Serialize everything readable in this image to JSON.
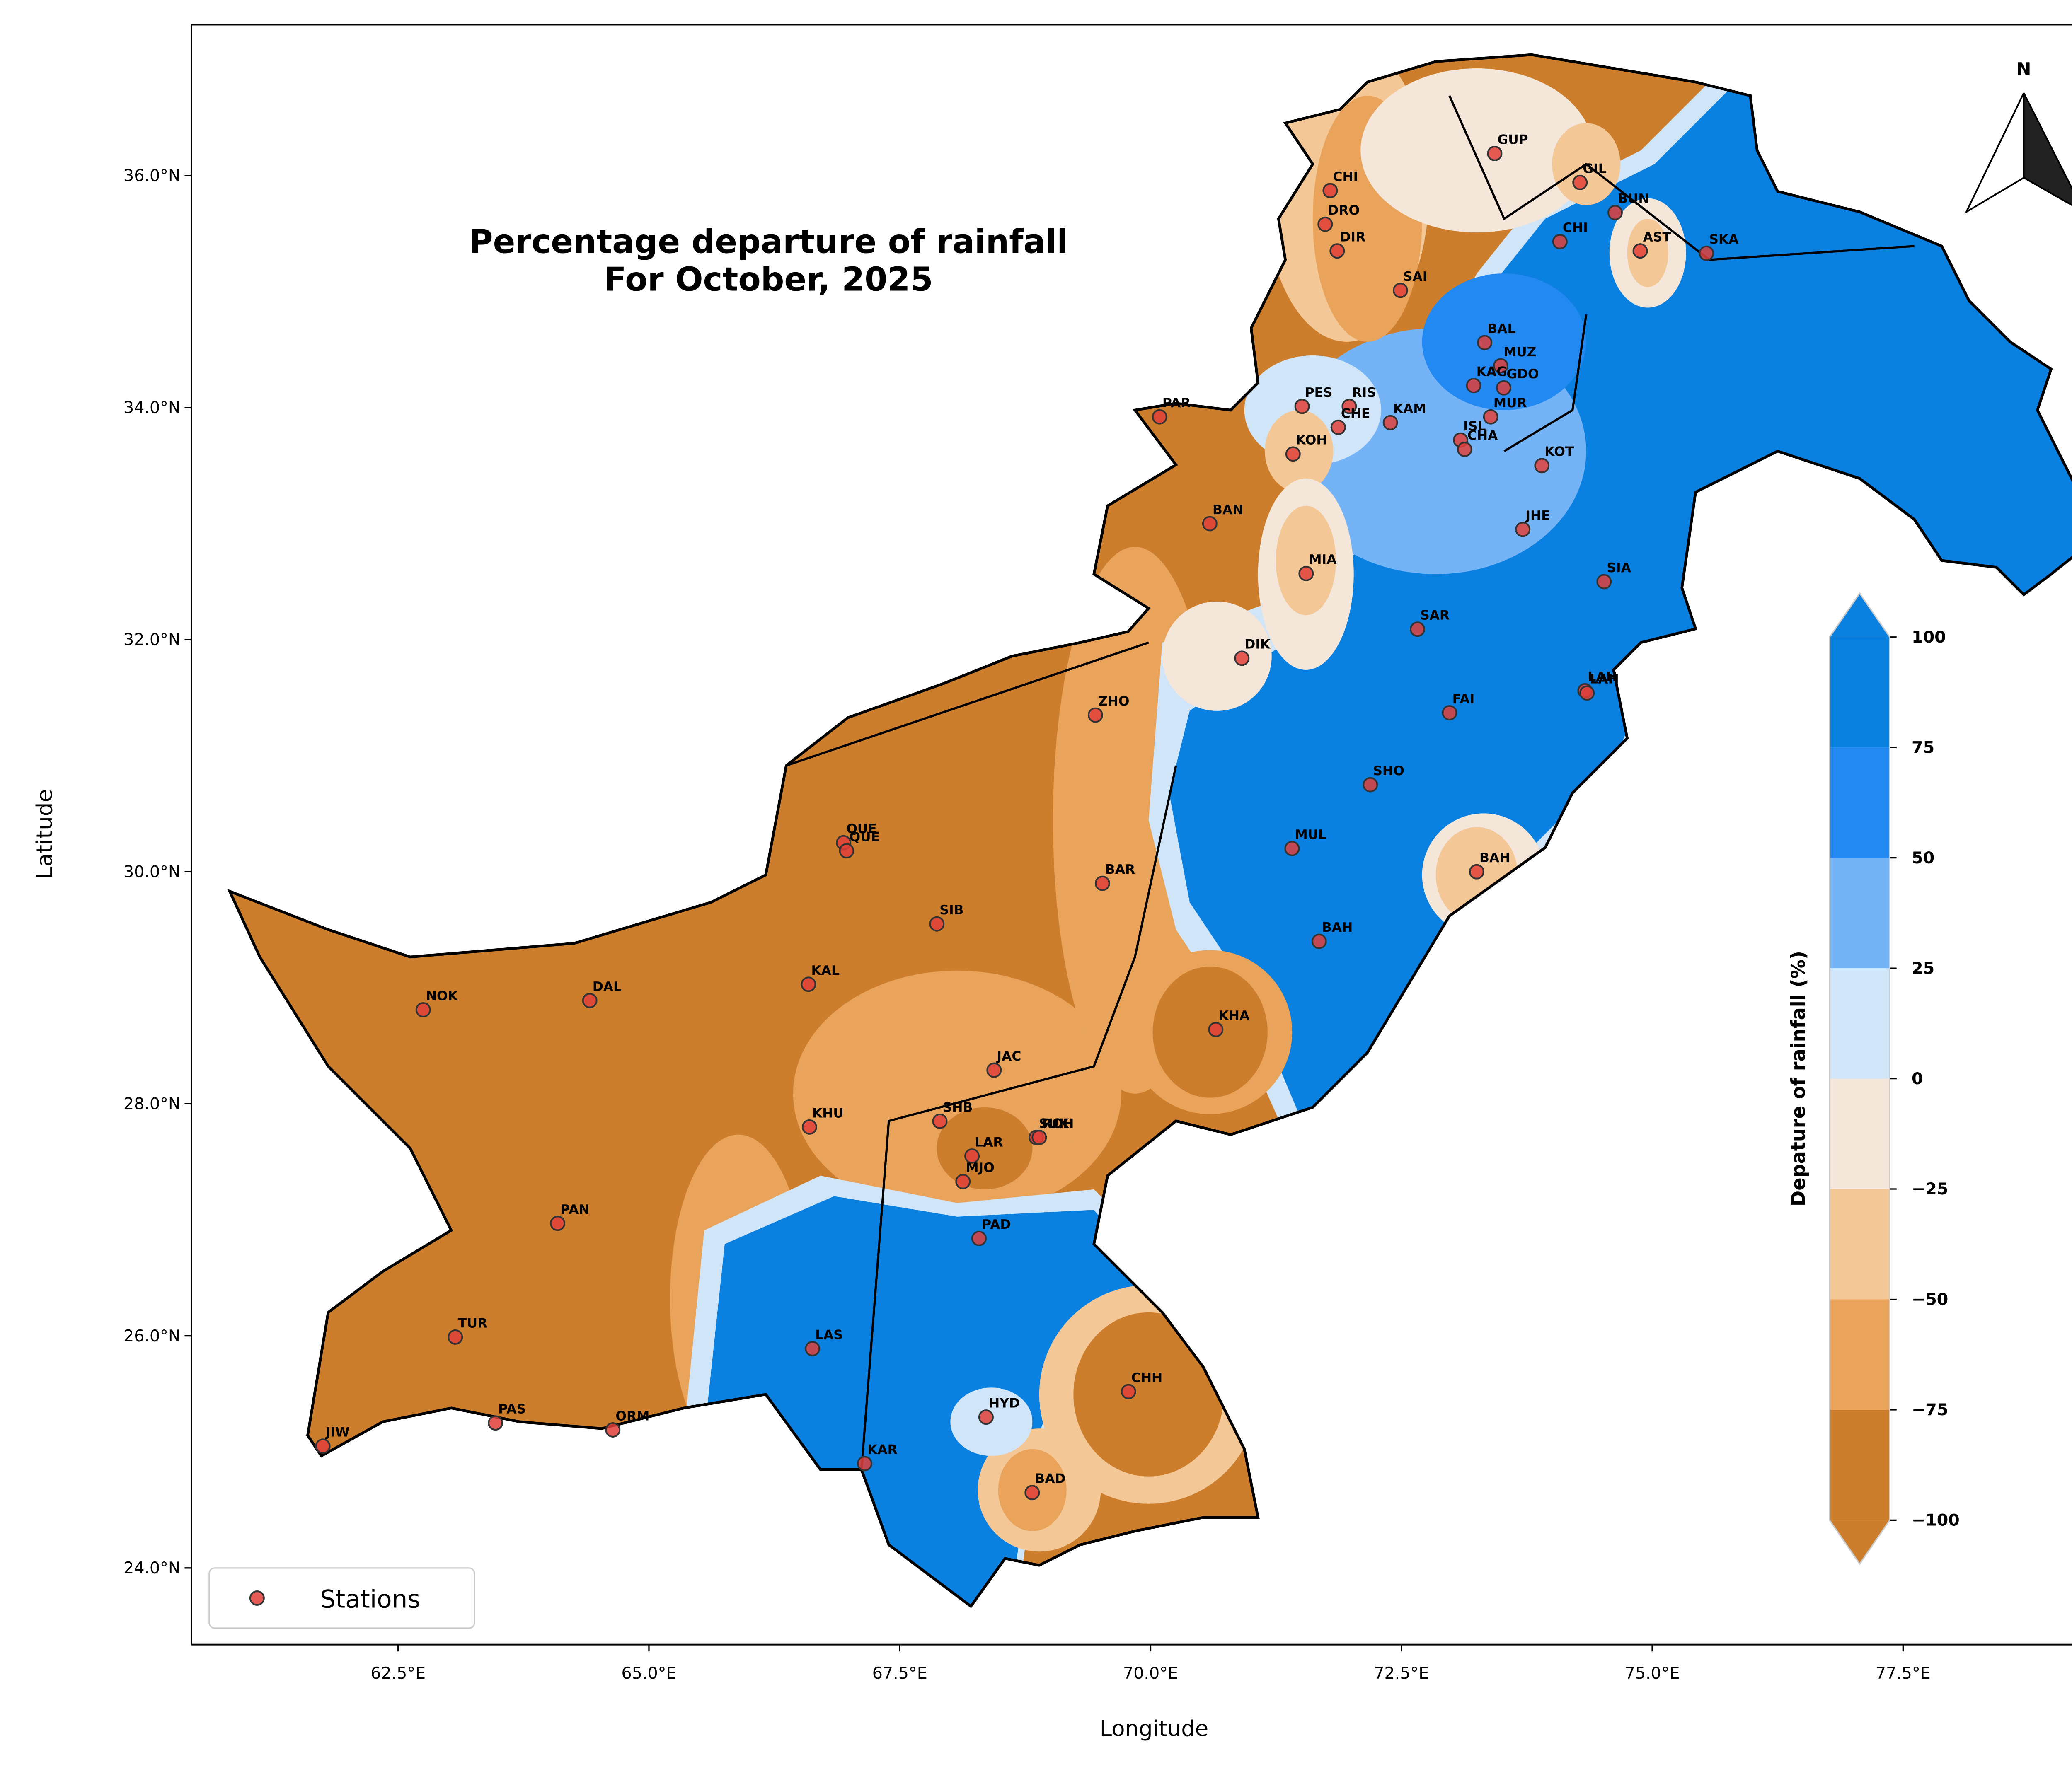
{
  "chart_data": {
    "type": "map",
    "title": "Percentage departure of rainfall\nFor October, 2025",
    "x_label": "Longitude",
    "y_label": "Latitude",
    "xlim": [
      60.44,
      79.63
    ],
    "ylim": [
      23.34,
      37.3
    ],
    "xticks": [
      {
        "value": 62.5,
        "label": "62.5°E"
      },
      {
        "value": 65,
        "label": "65.0°E"
      },
      {
        "value": 67.5,
        "label": "67.5°E"
      },
      {
        "value": 70,
        "label": "70.0°E"
      },
      {
        "value": 72.5,
        "label": "72.5°E"
      },
      {
        "value": 75,
        "label": "75.0°E"
      },
      {
        "value": 77.5,
        "label": "77.5°E"
      }
    ],
    "yticks": [
      {
        "value": 24,
        "label": "24.0°N"
      },
      {
        "value": 26,
        "label": "26.0°N"
      },
      {
        "value": 28,
        "label": "28.0°N"
      },
      {
        "value": 30,
        "label": "30.0°N"
      },
      {
        "value": 32,
        "label": "32.0°N"
      },
      {
        "value": 34,
        "label": "34.0°N"
      },
      {
        "value": 36,
        "label": "36.0°N"
      }
    ],
    "north_label": "N",
    "legend": "lower left",
    "series": [
      {
        "name": "Stations",
        "color": "#e0403a",
        "labels": [
          "CHI",
          "DRO",
          "DIR",
          "GUP",
          "GIL",
          "BUN",
          "CHI",
          "AST",
          "SKA",
          "SAI",
          "BAL",
          "MUZ",
          "KAG",
          "GDO",
          "MUR",
          "PES",
          "RIS",
          "CHE",
          "KAM",
          "ISL",
          "CHA",
          "PAR",
          "KOH",
          "KOT",
          "BAN",
          "JHE",
          "MIA",
          "SIA",
          "SAR",
          "DIK",
          "LAH",
          "LAH",
          "ZHO",
          "FAI",
          "SHO",
          "QUE",
          "QUE",
          "MUL",
          "BAR",
          "BAH",
          "SIB",
          "BAH",
          "KAL",
          "NOK",
          "DAL",
          "KHA",
          "JAC",
          "SHB",
          "SUK",
          "ROH",
          "KHU",
          "LAR",
          "MJO",
          "PAN",
          "PAD",
          "TUR",
          "LAS",
          "CHH",
          "HYD",
          "PAS",
          "ORM",
          "JIW",
          "KAR",
          "BAD"
        ],
        "x": [
          71.79,
          71.74,
          71.86,
          73.43,
          74.28,
          74.63,
          74.08,
          74.88,
          75.54,
          72.49,
          73.33,
          73.49,
          73.22,
          73.52,
          73.39,
          71.51,
          71.98,
          71.87,
          72.39,
          73.09,
          73.13,
          70.09,
          71.42,
          73.9,
          70.59,
          73.71,
          71.55,
          74.52,
          72.66,
          70.91,
          74.33,
          74.35,
          69.45,
          72.98,
          72.19,
          66.94,
          66.97,
          71.41,
          69.52,
          73.25,
          67.87,
          71.68,
          66.59,
          62.75,
          64.41,
          70.65,
          68.44,
          67.9,
          68.86,
          68.89,
          66.6,
          68.22,
          68.13,
          64.09,
          68.29,
          63.07,
          66.63,
          69.78,
          68.36,
          63.47,
          64.64,
          61.75,
          67.15,
          68.82
        ],
        "values": [
          35.87,
          35.58,
          35.35,
          36.19,
          35.94,
          35.68,
          35.43,
          35.35,
          35.33,
          35.01,
          34.56,
          34.36,
          34.19,
          34.17,
          33.92,
          34.01,
          34.01,
          33.83,
          33.87,
          33.72,
          33.64,
          33.92,
          33.6,
          33.5,
          33.0,
          32.95,
          32.57,
          32.5,
          32.09,
          31.84,
          31.56,
          31.54,
          31.35,
          31.37,
          30.75,
          30.25,
          30.18,
          30.2,
          29.9,
          30.0,
          29.55,
          29.4,
          29.03,
          28.81,
          28.89,
          28.64,
          28.29,
          27.85,
          27.71,
          27.71,
          27.8,
          27.55,
          27.33,
          26.97,
          26.84,
          25.99,
          25.89,
          25.52,
          25.3,
          25.25,
          25.19,
          25.05,
          24.9,
          24.65
        ]
      }
    ],
    "colorbar": {
      "label": "Depature of rainfall (%)",
      "ticks": [
        {
          "value": -100,
          "label": "−100"
        },
        {
          "value": -75,
          "label": "−75"
        },
        {
          "value": -50,
          "label": "−50"
        },
        {
          "value": -25,
          "label": "−25"
        },
        0,
        25,
        50,
        75,
        100
      ],
      "colors": [
        "#cd7e2d",
        "#e9a35a",
        "#f3c796",
        "#f4e6d9",
        "#d1e5f9",
        "#74b4f6",
        "#2288f2",
        "#0a80e0"
      ]
    }
  }
}
